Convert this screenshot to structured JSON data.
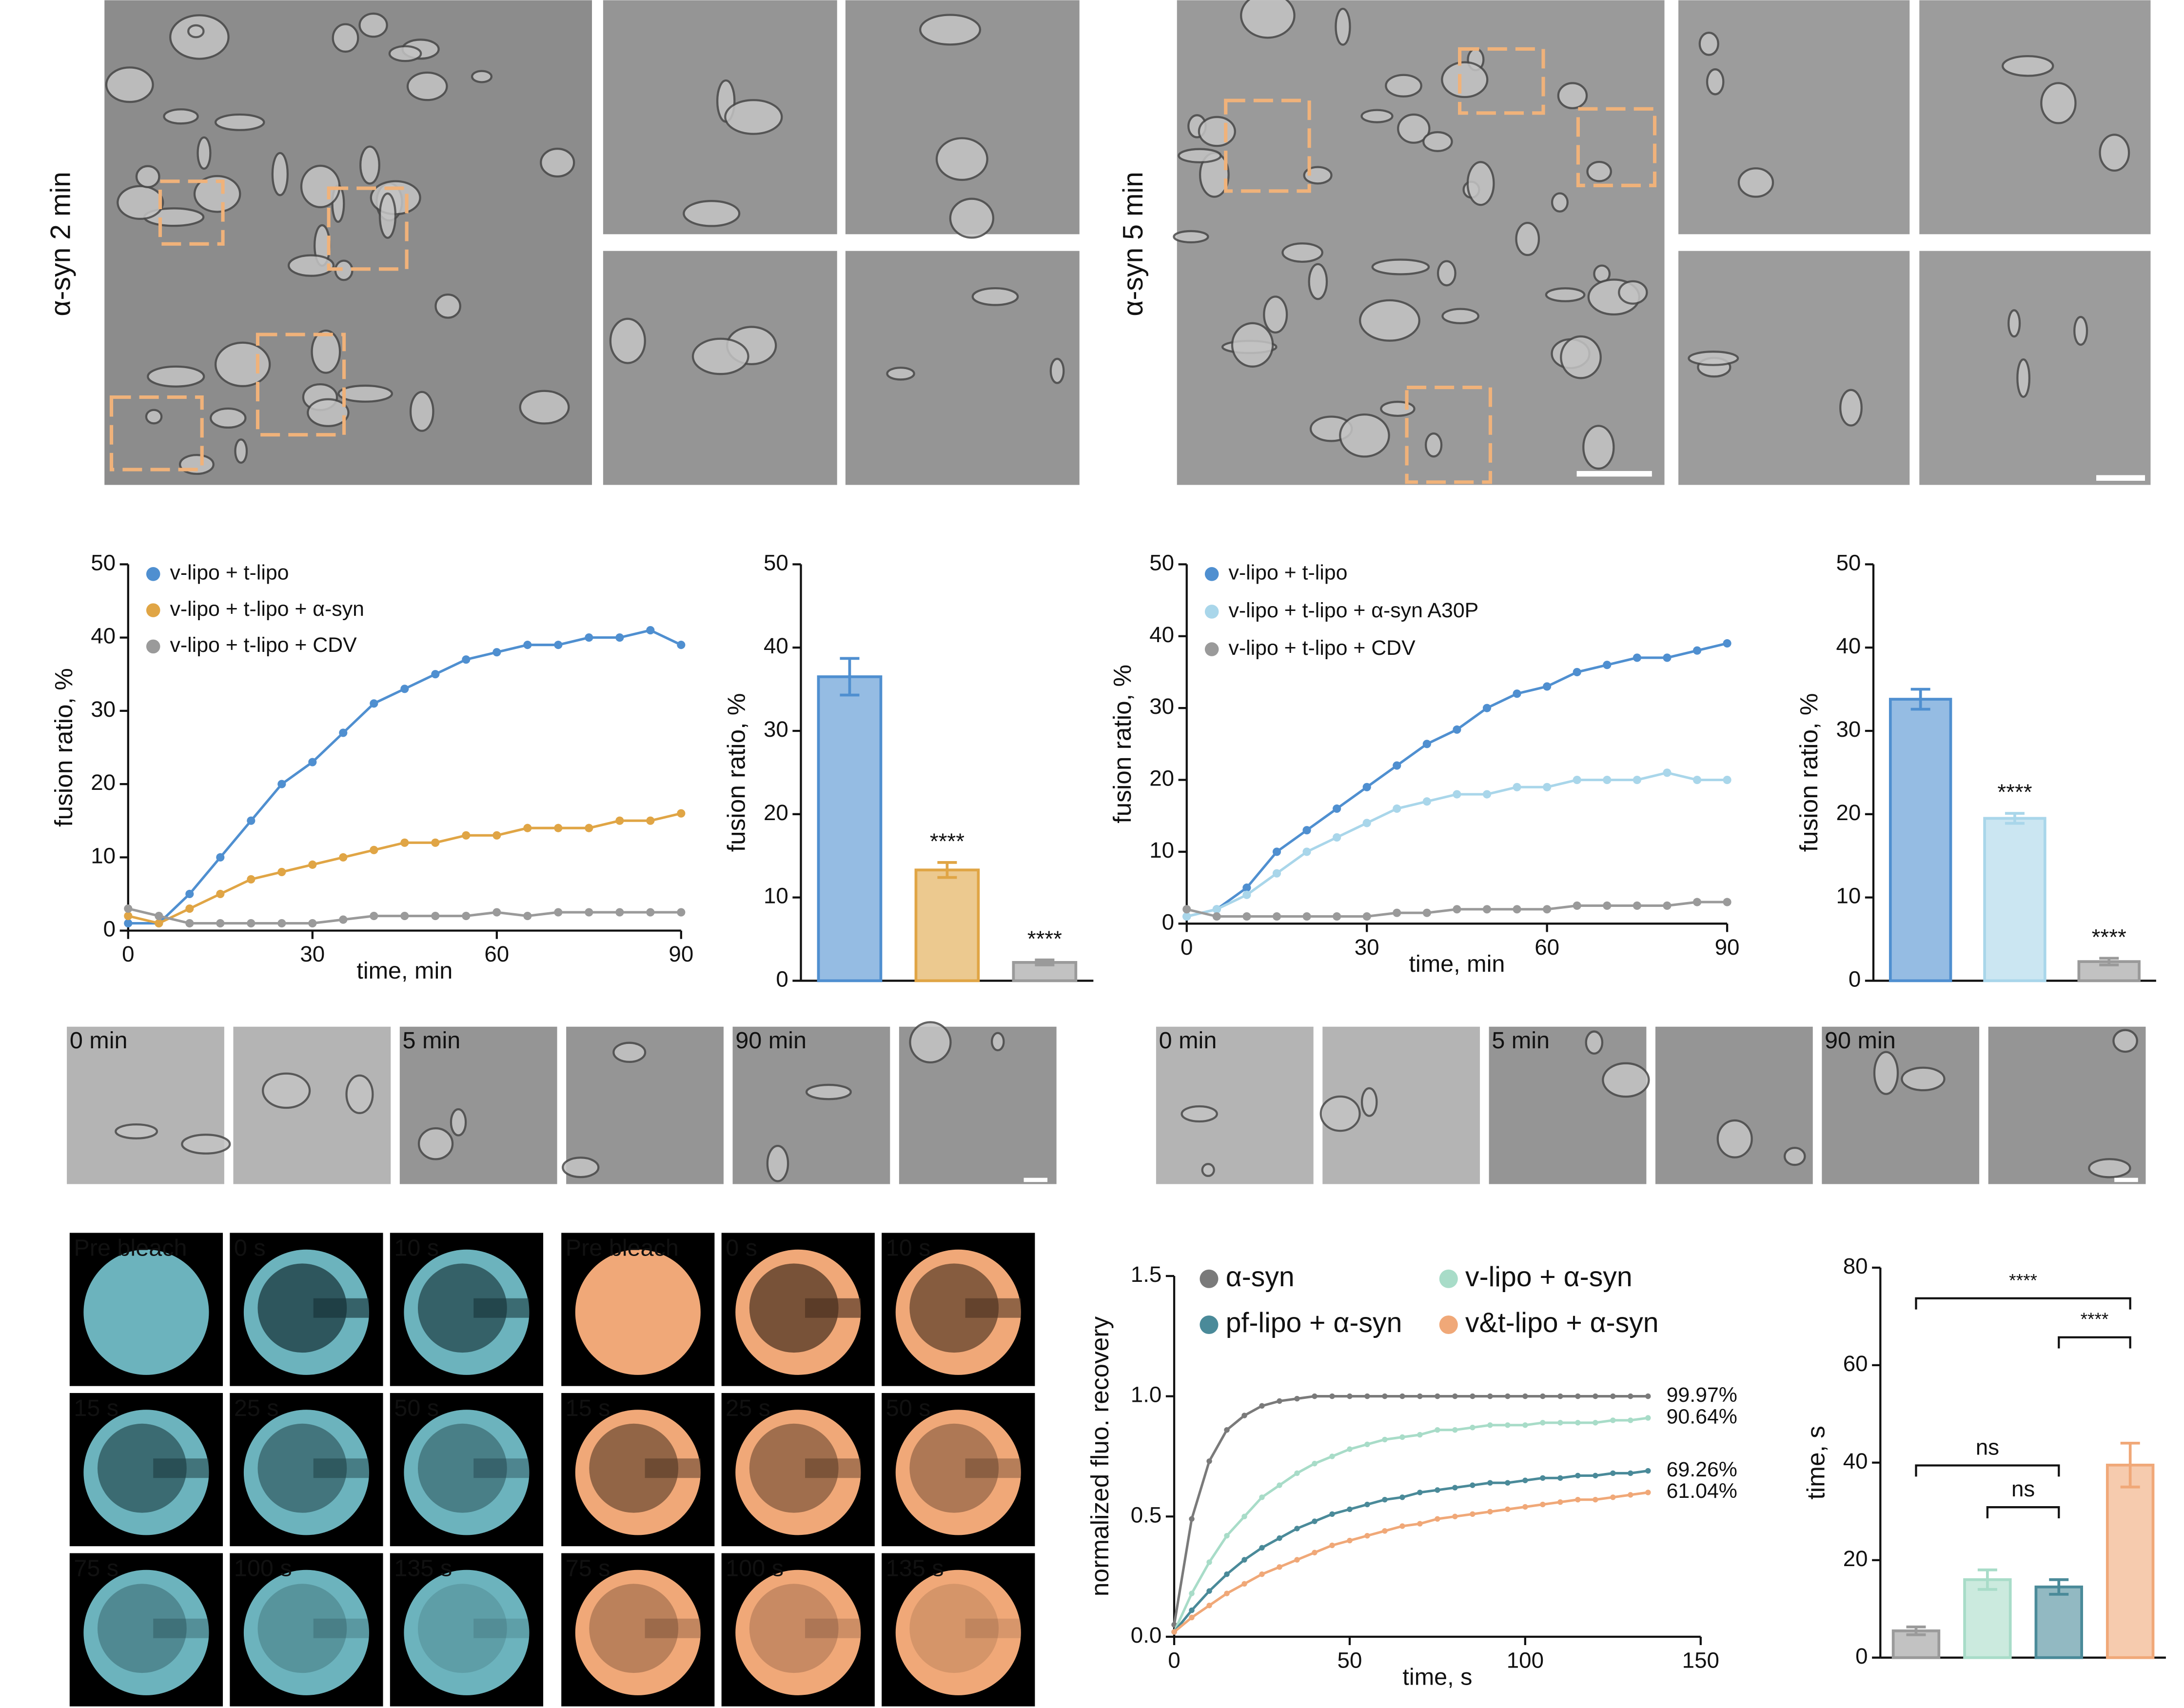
{
  "em_images": {
    "labels": [
      "α-syn 2 min",
      "α-syn 5 min"
    ]
  },
  "time_course": {
    "left": [
      "0 min",
      "5 min",
      "90 min"
    ],
    "right": [
      "0 min",
      "5 min",
      "90 min"
    ]
  },
  "frap": {
    "cyan": [
      "Pre bleach",
      "0 s",
      "10 s",
      "15 s",
      "25 s",
      "50 s",
      "75 s",
      "100 s",
      "135 s"
    ],
    "orange": [
      "Pre bleach",
      "0 s",
      "10 s",
      "15 s",
      "25 s",
      "50 s",
      "75 s",
      "100 s",
      "135 s"
    ]
  },
  "chart_data": [
    {
      "type": "line",
      "xlabel": "time, min",
      "ylabel": "fusion ratio, %",
      "x": [
        0,
        5,
        10,
        15,
        20,
        25,
        30,
        35,
        40,
        45,
        50,
        55,
        60,
        65,
        70,
        75,
        80,
        85,
        90
      ],
      "xlim": [
        0,
        90
      ],
      "xticks": [
        0,
        30,
        60,
        90
      ],
      "ylim": [
        0,
        50
      ],
      "yticks": [
        0,
        10,
        20,
        30,
        40,
        50
      ],
      "legend": "upper left",
      "series": [
        {
          "name": "v-lipo + t-lipo",
          "color": "#4f8fd0",
          "values": [
            1,
            1,
            5,
            10,
            15,
            20,
            23,
            27,
            31,
            33,
            35,
            37,
            38,
            39,
            39,
            40,
            40,
            41,
            39
          ]
        },
        {
          "name": "v-lipo + t-lipo + α-syn",
          "color": "#e0a545",
          "values": [
            2,
            1,
            3,
            5,
            7,
            8,
            9,
            10,
            11,
            12,
            12,
            13,
            13,
            14,
            14,
            14,
            15,
            15,
            16
          ]
        },
        {
          "name": "v-lipo + t-lipo + CDV",
          "color": "#9a9a9a",
          "values": [
            3,
            2,
            1,
            1,
            1,
            1,
            1,
            1.5,
            2,
            2,
            2,
            2,
            2.5,
            2,
            2.5,
            2.5,
            2.5,
            2.5,
            2.5
          ]
        }
      ]
    },
    {
      "type": "bar",
      "ylabel": "fusion ratio, %",
      "categories": [
        null,
        null,
        null
      ],
      "values": [
        36.5,
        13.3,
        2.2
      ],
      "errors": [
        2.2,
        0.9,
        0.3
      ],
      "colors": [
        "#4f8fd0",
        "#e0a545",
        "#9a9a9a"
      ],
      "annotations": [
        null,
        "****",
        "****"
      ],
      "ylim": [
        0,
        50
      ],
      "yticks": [
        0,
        10,
        20,
        30,
        40,
        50
      ]
    },
    {
      "type": "line",
      "xlabel": "time, min",
      "ylabel": "fusion ratio, %",
      "x": [
        0,
        5,
        10,
        15,
        20,
        25,
        30,
        35,
        40,
        45,
        50,
        55,
        60,
        65,
        70,
        75,
        80,
        85,
        90
      ],
      "xlim": [
        0,
        90
      ],
      "xticks": [
        0,
        30,
        60,
        90
      ],
      "ylim": [
        0,
        50
      ],
      "yticks": [
        0,
        10,
        20,
        30,
        40,
        50
      ],
      "legend": "upper left",
      "series": [
        {
          "name": "v-lipo + t-lipo",
          "color": "#4f8fd0",
          "values": [
            1,
            2,
            5,
            10,
            13,
            16,
            19,
            22,
            25,
            27,
            30,
            32,
            33,
            35,
            36,
            37,
            37,
            38,
            39
          ]
        },
        {
          "name": "v-lipo + t-lipo + α-syn A30P",
          "color": "#a9d6ea",
          "values": [
            1,
            2,
            4,
            7,
            10,
            12,
            14,
            16,
            17,
            18,
            18,
            19,
            19,
            20,
            20,
            20,
            21,
            20,
            20
          ]
        },
        {
          "name": "v-lipo + t-lipo + CDV",
          "color": "#9a9a9a",
          "values": [
            2,
            1,
            1,
            1,
            1,
            1,
            1,
            1.5,
            1.5,
            2,
            2,
            2,
            2,
            2.5,
            2.5,
            2.5,
            2.5,
            3,
            3
          ]
        }
      ]
    },
    {
      "type": "bar",
      "ylabel": "fusion ratio, %",
      "categories": [
        null,
        null,
        null
      ],
      "values": [
        33.8,
        19.5,
        2.3
      ],
      "errors": [
        1.2,
        0.6,
        0.4
      ],
      "colors": [
        "#4f8fd0",
        "#a9d6ea",
        "#9a9a9a"
      ],
      "annotations": [
        null,
        "****",
        "****"
      ],
      "ylim": [
        0,
        50
      ],
      "yticks": [
        0,
        10,
        20,
        30,
        40,
        50
      ]
    },
    {
      "type": "line",
      "xlabel": "time, s",
      "ylabel": "normalized fluo. recovery",
      "x": [
        0,
        5,
        10,
        15,
        20,
        25,
        30,
        35,
        40,
        45,
        50,
        55,
        60,
        65,
        70,
        75,
        80,
        85,
        90,
        95,
        100,
        105,
        110,
        115,
        120,
        125,
        130,
        135
      ],
      "xlim": [
        0,
        150
      ],
      "xticks": [
        0,
        50,
        100,
        150
      ],
      "ylim": [
        0,
        1.5
      ],
      "yticks": [
        {
          "value": 0,
          "label": "0.0"
        },
        {
          "value": 0.5,
          "label": "0.5"
        },
        {
          "value": 1,
          "label": "1.0"
        },
        {
          "value": 1.5,
          "label": "1.5"
        }
      ],
      "legend": "upper left",
      "end_labels": [
        "99.97%",
        "90.64%",
        "69.26%",
        "61.04%"
      ],
      "series": [
        {
          "name": "α-syn",
          "color": "#7a7a7a",
          "values": [
            0.05,
            0.49,
            0.73,
            0.86,
            0.92,
            0.96,
            0.98,
            0.99,
            1,
            1,
            1,
            1,
            1,
            1,
            1,
            1,
            1,
            1,
            1,
            1,
            1,
            1,
            1,
            1,
            1,
            1,
            1,
            1
          ]
        },
        {
          "name": "v-lipo + α-syn",
          "color": "#a8dcc8",
          "values": [
            0.02,
            0.18,
            0.31,
            0.42,
            0.5,
            0.58,
            0.63,
            0.68,
            0.72,
            0.75,
            0.78,
            0.8,
            0.82,
            0.83,
            0.84,
            0.86,
            0.86,
            0.87,
            0.88,
            0.88,
            0.88,
            0.89,
            0.89,
            0.89,
            0.89,
            0.9,
            0.9,
            0.91
          ]
        },
        {
          "name": "pf-lipo + α-syn",
          "color": "#4a8a99",
          "values": [
            0.02,
            0.11,
            0.19,
            0.26,
            0.32,
            0.37,
            0.41,
            0.45,
            0.48,
            0.51,
            0.53,
            0.55,
            0.57,
            0.58,
            0.6,
            0.61,
            0.62,
            0.63,
            0.64,
            0.64,
            0.65,
            0.66,
            0.66,
            0.67,
            0.67,
            0.68,
            0.68,
            0.69
          ]
        },
        {
          "name": "v&t-lipo + α-syn",
          "color": "#f0a878",
          "values": [
            0.02,
            0.08,
            0.13,
            0.18,
            0.22,
            0.26,
            0.29,
            0.32,
            0.35,
            0.38,
            0.4,
            0.42,
            0.44,
            0.46,
            0.47,
            0.49,
            0.5,
            0.51,
            0.52,
            0.53,
            0.54,
            0.55,
            0.56,
            0.57,
            0.57,
            0.58,
            0.59,
            0.6
          ]
        }
      ]
    },
    {
      "type": "bar",
      "ylabel": "time, s",
      "categories": [
        null,
        null,
        null,
        null
      ],
      "values": [
        5.5,
        16,
        14.5,
        39.5
      ],
      "errors": [
        0.8,
        2,
        1.5,
        4.5
      ],
      "colors": [
        "#9a9a9a",
        "#a8dcc8",
        "#4a8a99",
        "#f0a878"
      ],
      "ylim": [
        0,
        80
      ],
      "yticks": [
        0,
        20,
        40,
        60,
        80
      ],
      "comparisons": [
        {
          "groups": [
            0,
            3
          ],
          "label": "****"
        },
        {
          "groups": [
            2,
            3
          ],
          "label": "****"
        },
        {
          "groups": [
            0,
            2
          ],
          "label": "ns"
        },
        {
          "groups": [
            1,
            2
          ],
          "label": "ns"
        }
      ]
    }
  ]
}
